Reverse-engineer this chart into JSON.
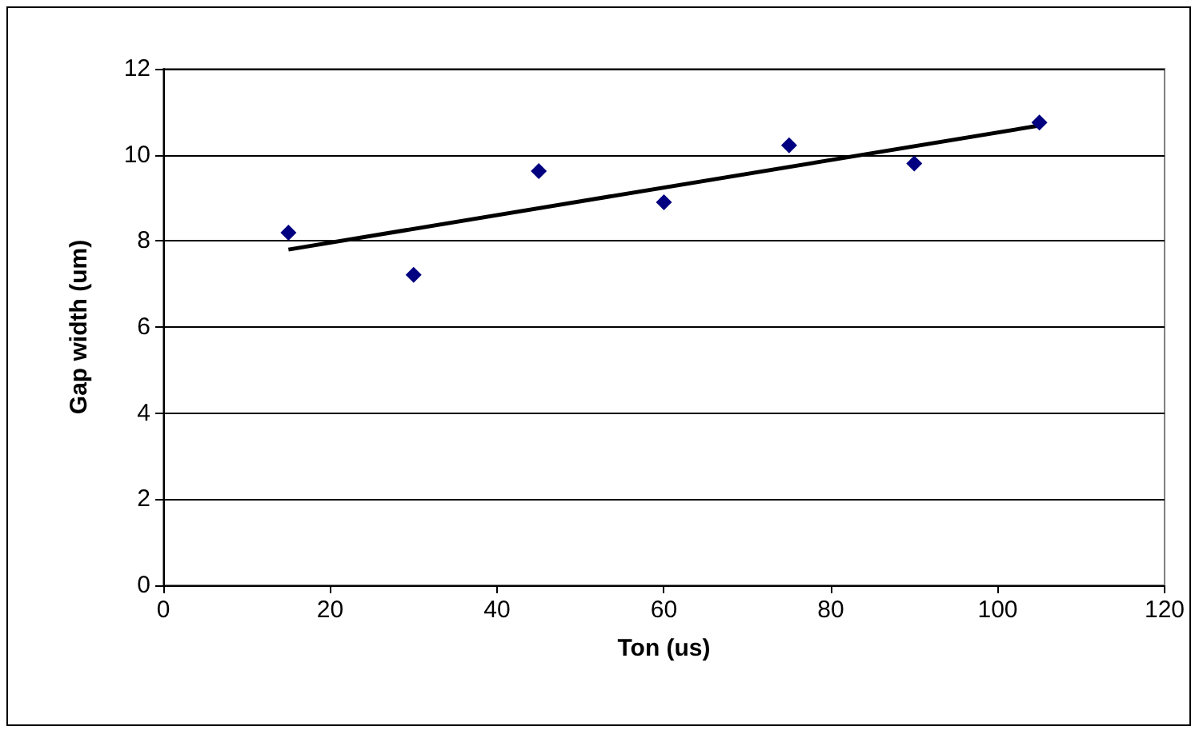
{
  "chart_data": {
    "type": "scatter",
    "xlabel": "Ton (us)",
    "ylabel": "Gap width (um)",
    "x": [
      15,
      30,
      45,
      60,
      75,
      90,
      105
    ],
    "series": [
      {
        "color": "#000080",
        "marker": "diamond",
        "values": [
          8.19,
          7.21,
          9.62,
          8.9,
          10.22,
          9.8,
          10.75
        ]
      },
      {
        "type": "line",
        "color": "#000000",
        "marker": "none",
        "x": [
          15,
          105
        ],
        "values": [
          7.8,
          10.68
        ]
      }
    ],
    "xlim": [
      0,
      120
    ],
    "xticks": [
      0,
      20,
      40,
      60,
      80,
      100,
      120
    ],
    "ylim": [
      0,
      12
    ],
    "yticks": [
      0,
      2,
      4,
      6,
      8,
      10,
      12
    ],
    "grid": "y"
  }
}
